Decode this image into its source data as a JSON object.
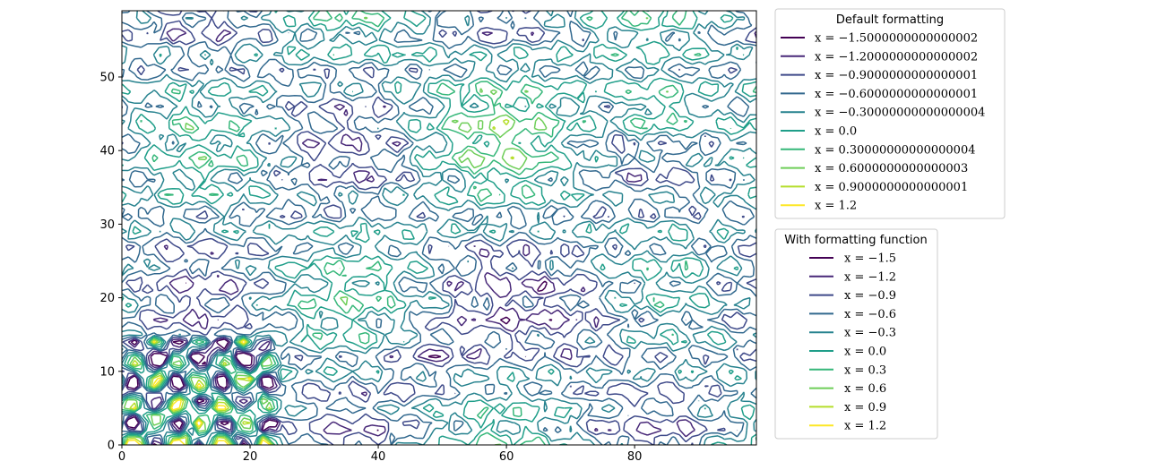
{
  "chart_data": {
    "type": "contour",
    "title": "",
    "xlabel": "",
    "ylabel": "",
    "xlim": [
      0,
      99
    ],
    "ylim": [
      0,
      59
    ],
    "x_ticks": [
      0,
      20,
      40,
      60,
      80
    ],
    "y_ticks": [
      0,
      10,
      20,
      30,
      40,
      50
    ],
    "colormap": "viridis",
    "levels": [
      -1.5,
      -1.2,
      -0.9,
      -0.6,
      -0.3,
      0.0,
      0.3,
      0.6,
      0.9,
      1.2
    ],
    "colors": [
      "#440154",
      "#482878",
      "#3e4989",
      "#31688e",
      "#26828e",
      "#1f9e89",
      "#35b779",
      "#6ece58",
      "#b5de2b",
      "#fde725"
    ],
    "legends": [
      {
        "title": "Default formatting",
        "placement": "upper right outside",
        "labels": [
          "x = −1.5000000000000002",
          "x = −1.2000000000000002",
          "x = −0.9000000000000001",
          "x = −0.6000000000000001",
          "x = −0.30000000000000004",
          "x = 0.0",
          "x = 0.30000000000000004",
          "x = 0.6000000000000003",
          "x = 0.9000000000000001",
          "x = 1.2"
        ]
      },
      {
        "title": "With formatting function",
        "placement": "right outside, below first legend",
        "labels": [
          "x = −1.5",
          "x = −1.2",
          "x = −0.9",
          "x = −0.6",
          "x = −0.3",
          "x = 0.0",
          "x = 0.3",
          "x = 0.6",
          "x = 0.9",
          "x = 1.2"
        ]
      }
    ]
  }
}
